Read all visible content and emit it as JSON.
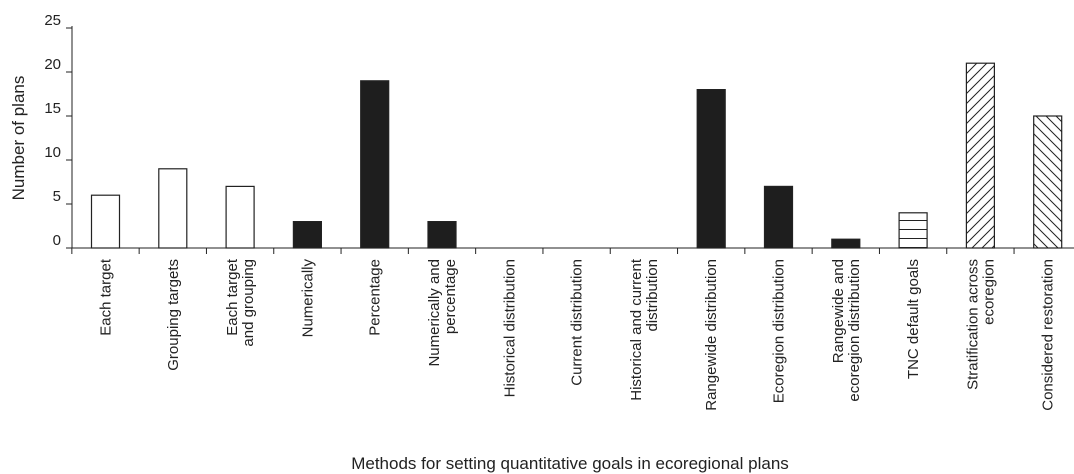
{
  "chart_data": {
    "type": "bar",
    "title": "",
    "xlabel": "Methods for setting quantitative goals in ecoregional plans",
    "ylabel": "Number of plans",
    "ylim": [
      0,
      25
    ],
    "yticks": [
      0,
      5,
      10,
      15,
      20,
      25
    ],
    "grid": false,
    "categories": [
      [
        "Each target"
      ],
      [
        "Grouping targets"
      ],
      [
        "Each target",
        "and grouping"
      ],
      [
        "Numerically"
      ],
      [
        "Percentage"
      ],
      [
        "Numerically and",
        "percentage"
      ],
      [
        "Historical distribution"
      ],
      [
        "Current distribution"
      ],
      [
        "Historical and current",
        "distribution"
      ],
      [
        "Rangewide distribution"
      ],
      [
        "Ecoregion distribution"
      ],
      [
        "Rangewide and",
        "ecoregion distribution"
      ],
      [
        "TNC default goals"
      ],
      [
        "Stratification across",
        "ecoregion"
      ],
      [
        "Considered restoration"
      ]
    ],
    "values": [
      6,
      9,
      7,
      3,
      19,
      3,
      0,
      0,
      0,
      18,
      7,
      1,
      4,
      21,
      15
    ],
    "fills": [
      "open",
      "open",
      "open",
      "solid",
      "solid",
      "solid",
      "solid",
      "solid",
      "solid",
      "solid",
      "solid",
      "solid",
      "horizontal-lines",
      "diagonal-hatch",
      "back-diagonal-hatch"
    ],
    "colors": {
      "solid": "#1e1e1e",
      "open": "#ffffff",
      "stroke": "#222222"
    }
  }
}
